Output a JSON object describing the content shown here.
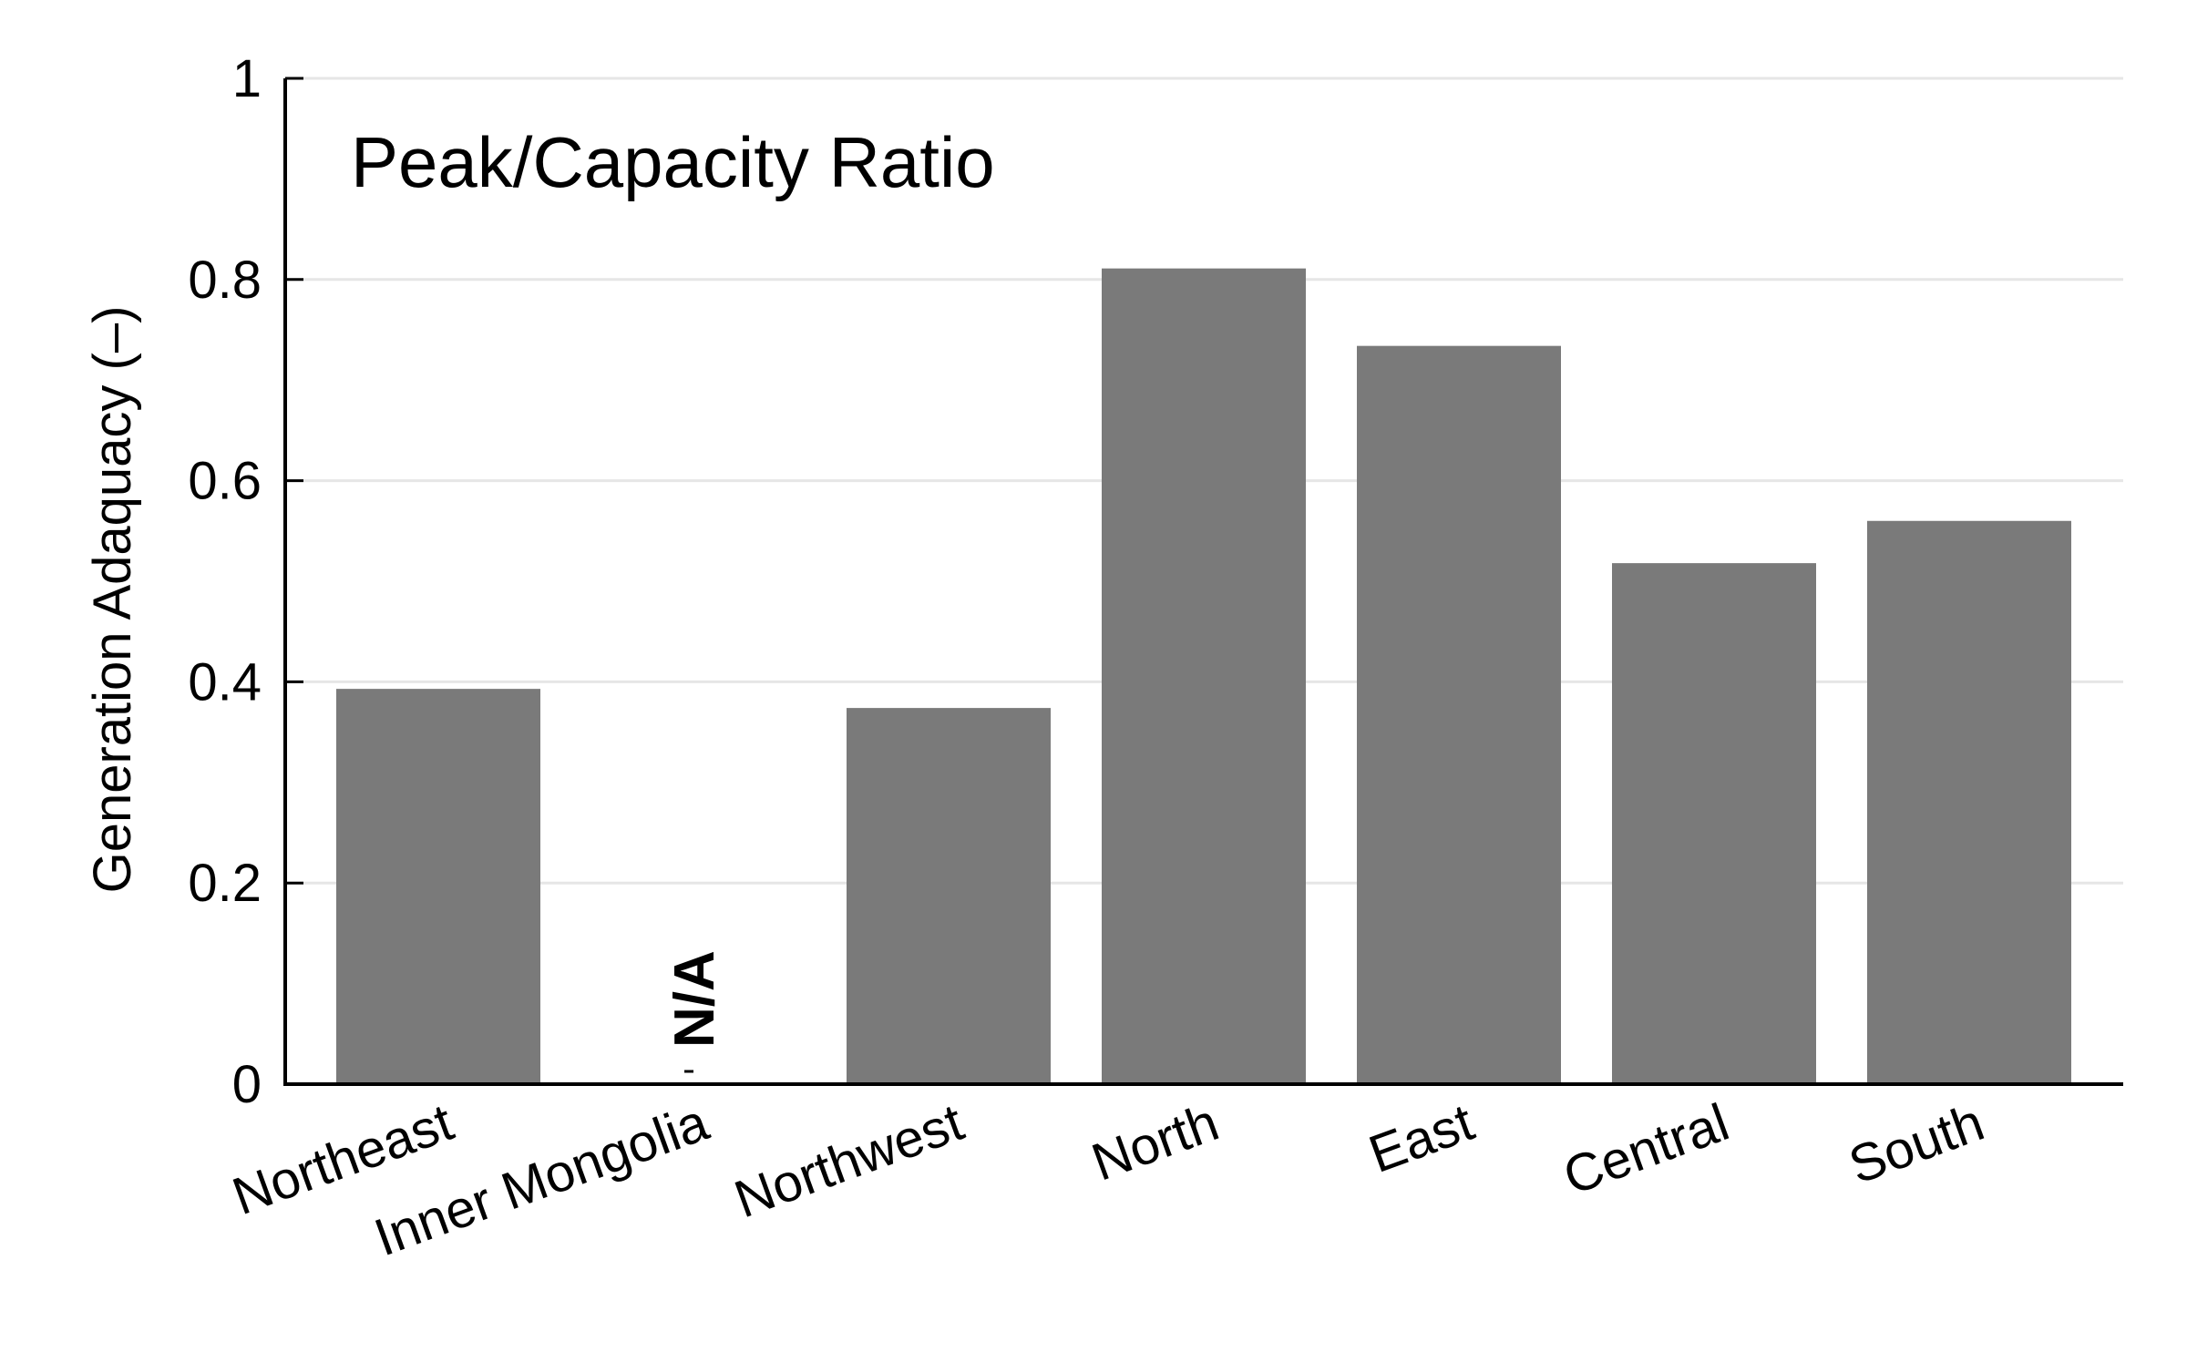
{
  "chart_data": {
    "type": "bar",
    "title": "",
    "annotation": "Peak/Capacity Ratio",
    "xlabel": "",
    "ylabel": "Generation Adaquacy (–)",
    "ylim": [
      0,
      1
    ],
    "yticks": [
      "0",
      "0.2",
      "0.4",
      "0.6",
      "0.8",
      "1"
    ],
    "categories": [
      "Northeast",
      "Inner Mongolia",
      "Northwest",
      "North",
      "East",
      "Central",
      "South"
    ],
    "values": [
      0.393,
      null,
      0.374,
      0.811,
      0.734,
      0.518,
      0.56
    ],
    "missing_label": "N/A",
    "grid": true,
    "legend": "none",
    "bar_color": "#7a7a7a"
  }
}
